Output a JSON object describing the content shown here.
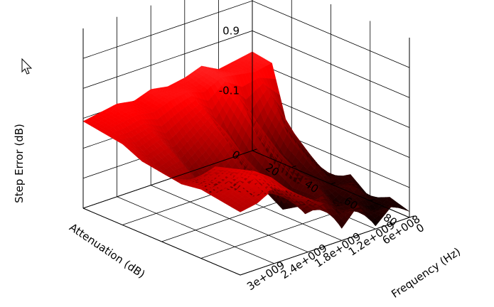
{
  "chart_data": {
    "type": "surface3d",
    "title": "",
    "xlabel": "Attenuation (dB)",
    "ylabel": "Frequency (Hz)",
    "zlabel": "Step Error (dB)",
    "x_ticks": [
      "0",
      "20",
      "40",
      "60",
      "80"
    ],
    "x_tick_values": [
      0,
      20,
      40,
      60,
      80
    ],
    "y_ticks": [
      "0",
      "6e+008",
      "1.2e+009",
      "1.8e+009",
      "2.4e+009",
      "3e+009"
    ],
    "y_tick_values": [
      0,
      600000000,
      1200000000,
      1800000000,
      2400000000,
      3000000000
    ],
    "z_ticks": [
      "0.9",
      "-0.1"
    ],
    "z_tick_values": [
      0.9,
      -0.1
    ],
    "xlim": [
      0,
      80
    ],
    "ylim": [
      0,
      3000000000
    ],
    "zlim": [
      -1.1,
      1.9
    ],
    "grid": true,
    "colormap": [
      "#000000",
      "#ff0000",
      "#ffffff"
    ],
    "series": [
      {
        "x": 0,
        "y": [
          0,
          300000000,
          600000000,
          900000000,
          1200000000,
          1500000000,
          1800000000,
          2100000000,
          2400000000,
          2700000000,
          3000000000
        ],
        "z": [
          0.55,
          0.5,
          0.45,
          0.6,
          0.5,
          0.45,
          0.5,
          0.4,
          0.45,
          0.4,
          0.35
        ]
      },
      {
        "x": 10,
        "y": [
          0,
          300000000,
          600000000,
          900000000,
          1200000000,
          1500000000,
          1800000000,
          2100000000,
          2400000000,
          2700000000,
          3000000000
        ],
        "z": [
          0.5,
          0.45,
          0.5,
          0.55,
          0.4,
          0.5,
          0.45,
          0.35,
          0.4,
          0.35,
          0.3
        ]
      },
      {
        "x": 20,
        "y": [
          0,
          300000000,
          600000000,
          900000000,
          1200000000,
          1500000000,
          1800000000,
          2100000000,
          2400000000,
          2700000000,
          3000000000
        ],
        "z": [
          -0.7,
          0.1,
          -0.4,
          0.35,
          -0.2,
          0.3,
          0.1,
          -0.1,
          0.2,
          0.1,
          0.25
        ]
      },
      {
        "x": 30,
        "y": [
          0,
          300000000,
          600000000,
          900000000,
          1200000000,
          1500000000,
          1800000000,
          2100000000,
          2400000000,
          2700000000,
          3000000000
        ],
        "z": [
          -0.9,
          -0.3,
          -0.8,
          0.0,
          -0.6,
          0.1,
          -0.2,
          -0.4,
          0.0,
          -0.1,
          0.1
        ]
      },
      {
        "x": 40,
        "y": [
          0,
          300000000,
          600000000,
          900000000,
          1200000000,
          1500000000,
          1800000000,
          2100000000,
          2400000000,
          2700000000,
          3000000000
        ],
        "z": [
          -1.0,
          -0.6,
          -0.9,
          -0.3,
          -0.8,
          -0.2,
          -0.5,
          -0.6,
          -0.3,
          -0.2,
          0.05
        ]
      },
      {
        "x": 50,
        "y": [
          0,
          300000000,
          600000000,
          900000000,
          1200000000,
          1500000000,
          1800000000,
          2100000000,
          2400000000,
          2700000000,
          3000000000
        ],
        "z": [
          -0.8,
          -0.9,
          -0.7,
          -0.5,
          -1.0,
          -0.4,
          -0.6,
          -0.3,
          0.1,
          0.0,
          0.0
        ]
      },
      {
        "x": 60,
        "y": [
          0,
          300000000,
          600000000,
          900000000,
          1200000000,
          1500000000,
          1800000000,
          2100000000,
          2400000000,
          2700000000,
          3000000000
        ],
        "z": [
          -1.05,
          -0.7,
          -1.0,
          -0.6,
          -0.8,
          -0.5,
          -0.4,
          0.0,
          0.2,
          0.1,
          0.05
        ]
      },
      {
        "x": 70,
        "y": [
          0,
          300000000,
          600000000,
          900000000,
          1200000000,
          1500000000,
          1800000000,
          2100000000,
          2400000000,
          2700000000,
          3000000000
        ],
        "z": [
          -0.9,
          -1.05,
          -0.8,
          -0.9,
          -0.5,
          -0.7,
          -0.3,
          0.1,
          0.3,
          0.1,
          0.0
        ]
      },
      {
        "x": 80,
        "y": [
          0,
          300000000,
          600000000,
          900000000,
          1200000000,
          1500000000,
          1800000000,
          2100000000,
          2400000000,
          2700000000,
          3000000000
        ],
        "z": [
          -1.0,
          -0.8,
          -1.05,
          -0.6,
          -0.9,
          -0.4,
          -0.2,
          0.0,
          0.15,
          0.0,
          -0.05
        ]
      }
    ]
  }
}
